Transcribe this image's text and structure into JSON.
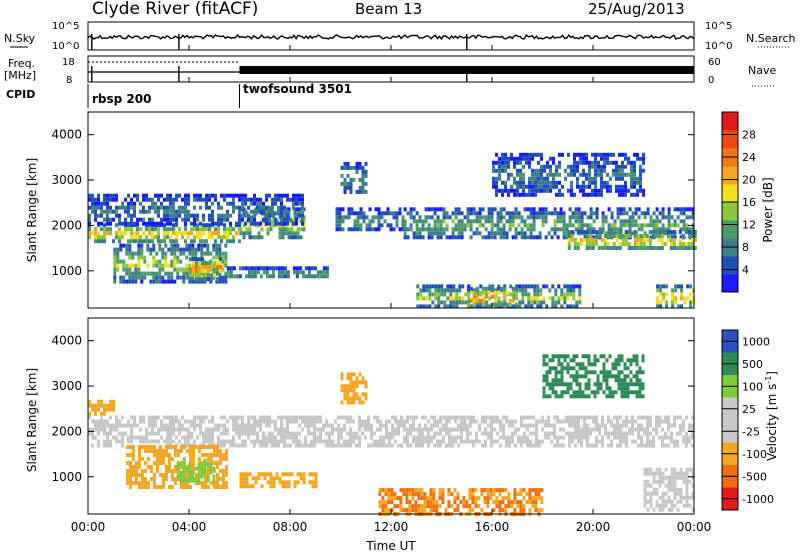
{
  "header": {
    "station": "Clyde River (fitACF)",
    "beam": "Beam 13",
    "date": "25/Aug/2013"
  },
  "noise_panel": {
    "left_label": "N.Sky",
    "right_label": "N.Search",
    "left_ticks": [
      "10^5",
      "10^0"
    ],
    "right_ticks": [
      "10^5",
      "10^0"
    ]
  },
  "freq_panel": {
    "left_label_1": "Freq.",
    "left_label_2": "[MHz]",
    "right_label": "Nave",
    "left_ticks": [
      "18",
      "8"
    ],
    "right_ticks": [
      "60",
      "0"
    ]
  },
  "cpid_panel": {
    "label": "CPID",
    "segments": [
      {
        "name": "rbsp 200",
        "start_hour": 0,
        "end_hour": 6
      },
      {
        "name": "twofsound 3501",
        "start_hour": 6,
        "end_hour": 24
      }
    ]
  },
  "x_axis": {
    "title": "Time UT",
    "range_hours": [
      0,
      24
    ],
    "ticks": [
      "00:00",
      "04:00",
      "08:00",
      "12:00",
      "16:00",
      "20:00",
      "00:00"
    ]
  },
  "chart_data": [
    {
      "type": "heatmap",
      "parameter": "power",
      "ylabel": "Slant Range [km]",
      "ylim": [
        180,
        4500
      ],
      "y_ticks": [
        "1000",
        "2000",
        "3000",
        "4000"
      ],
      "x_range_hours": [
        0,
        24
      ],
      "colorbar": {
        "label": "Power [dB]",
        "range": [
          0,
          32
        ],
        "ticks": [
          "4",
          "8",
          "12",
          "16",
          "20",
          "24",
          "28"
        ],
        "colors": [
          "#1a1aff",
          "#1f4fb8",
          "#3e7d8a",
          "#4c9a6a",
          "#8cc63f",
          "#f0e020",
          "#f5a623",
          "#f07a10",
          "#ee4a10",
          "#e31a1c"
        ]
      },
      "bands": [
        {
          "t0": 0.0,
          "t1": 6.0,
          "r0": 1650,
          "r1": 2050,
          "peak": 20
        },
        {
          "t0": 6.0,
          "t1": 8.5,
          "r0": 1700,
          "r1": 2400,
          "peak": 16
        },
        {
          "t0": 0.0,
          "t1": 8.5,
          "r0": 2050,
          "r1": 2700,
          "peak": 8
        },
        {
          "t0": 1.0,
          "t1": 5.5,
          "r0": 800,
          "r1": 1600,
          "peak": 16
        },
        {
          "t0": 4.0,
          "t1": 5.2,
          "r0": 850,
          "r1": 1300,
          "peak": 24
        },
        {
          "t0": 5.5,
          "t1": 9.5,
          "r0": 850,
          "r1": 1100,
          "peak": 12
        },
        {
          "t0": 9.8,
          "t1": 12.5,
          "r0": 1900,
          "r1": 2400,
          "peak": 10
        },
        {
          "t0": 10.0,
          "t1": 11.0,
          "r0": 2700,
          "r1": 3400,
          "peak": 10
        },
        {
          "t0": 12.5,
          "t1": 24.0,
          "r0": 1700,
          "r1": 2400,
          "peak": 12
        },
        {
          "t0": 19.0,
          "t1": 24.0,
          "r0": 1500,
          "r1": 1900,
          "peak": 20
        },
        {
          "t0": 13.0,
          "t1": 19.5,
          "r0": 220,
          "r1": 700,
          "peak": 16
        },
        {
          "t0": 15.0,
          "t1": 17.0,
          "r0": 250,
          "r1": 650,
          "peak": 26
        },
        {
          "t0": 16.0,
          "t1": 22.0,
          "r0": 2700,
          "r1": 3600,
          "peak": 8
        },
        {
          "t0": 22.5,
          "t1": 24.0,
          "r0": 220,
          "r1": 700,
          "peak": 22
        }
      ]
    },
    {
      "type": "heatmap",
      "parameter": "velocity",
      "ylabel": "Slant Range [km]",
      "ylim": [
        180,
        4500
      ],
      "y_ticks": [
        "1000",
        "2000",
        "3000",
        "4000"
      ],
      "x_range_hours": [
        0,
        24
      ],
      "colorbar": {
        "label": "Velocity [m s^-1]",
        "ticks": [
          "1000",
          "500",
          "100",
          "25",
          "-25",
          "-100",
          "-500",
          "-1000"
        ],
        "colors": [
          "#2a52be",
          "#2e8b57",
          "#7ccd3c",
          "#c8c8c8",
          "#c8c8c8",
          "#f5a623",
          "#f07010",
          "#e31a1c"
        ]
      },
      "bands": [
        {
          "t0": 0.0,
          "t1": 24.0,
          "r0": 1650,
          "r1": 2350,
          "velocity": 0
        },
        {
          "t0": 0.0,
          "t1": 1.0,
          "r0": 2350,
          "r1": 2700,
          "velocity": -100
        },
        {
          "t0": 1.5,
          "t1": 5.5,
          "r0": 800,
          "r1": 1700,
          "velocity": -100
        },
        {
          "t0": 3.5,
          "t1": 5.0,
          "r0": 900,
          "r1": 1400,
          "velocity": 150
        },
        {
          "t0": 6.0,
          "t1": 9.0,
          "r0": 800,
          "r1": 1100,
          "velocity": -100
        },
        {
          "t0": 10.0,
          "t1": 11.0,
          "r0": 2600,
          "r1": 3300,
          "velocity": -200
        },
        {
          "t0": 11.5,
          "t1": 18.0,
          "r0": 220,
          "r1": 750,
          "velocity": -300
        },
        {
          "t0": 18.0,
          "t1": 22.0,
          "r0": 2800,
          "r1": 3700,
          "velocity": 500
        },
        {
          "t0": 22.0,
          "t1": 24.0,
          "r0": 300,
          "r1": 1200,
          "velocity": 0
        }
      ]
    }
  ]
}
